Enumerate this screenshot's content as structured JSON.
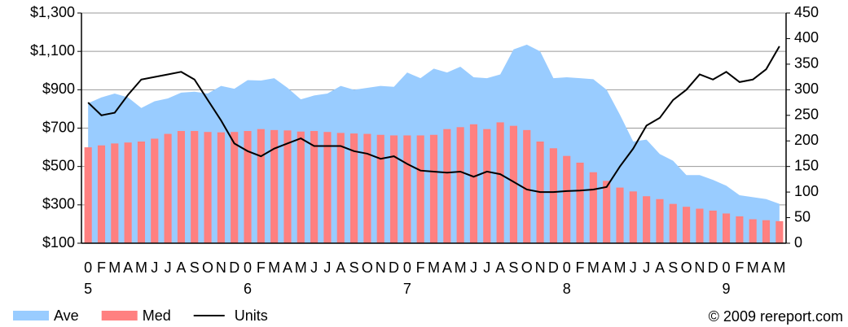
{
  "chart_data": {
    "type": "combo",
    "categories": [
      "0",
      "F",
      "M",
      "A",
      "M",
      "J",
      "J",
      "A",
      "S",
      "O",
      "N",
      "D",
      "0",
      "F",
      "M",
      "A",
      "M",
      "J",
      "J",
      "A",
      "S",
      "O",
      "N",
      "D",
      "0",
      "F",
      "M",
      "A",
      "M",
      "J",
      "J",
      "A",
      "S",
      "O",
      "N",
      "D",
      "0",
      "F",
      "M",
      "A",
      "M",
      "J",
      "J",
      "A",
      "S",
      "O",
      "N",
      "D",
      "0",
      "F",
      "M",
      "A",
      "M"
    ],
    "year_labels": [
      "5",
      "6",
      "7",
      "8",
      "9"
    ],
    "series": [
      {
        "name": "Ave",
        "kind": "area",
        "color": "#99ccff",
        "values": [
          830,
          860,
          880,
          860,
          805,
          840,
          855,
          885,
          890,
          880,
          920,
          905,
          950,
          948,
          960,
          910,
          850,
          870,
          880,
          920,
          900,
          910,
          920,
          915,
          990,
          960,
          1010,
          990,
          1020,
          965,
          960,
          980,
          1110,
          1135,
          1100,
          960,
          965,
          960,
          955,
          900,
          770,
          630,
          640,
          565,
          530,
          455,
          455,
          430,
          400,
          350,
          340,
          330,
          305
        ]
      },
      {
        "name": "Med",
        "kind": "bar",
        "color": "#ff8080",
        "values": [
          600,
          610,
          620,
          625,
          630,
          645,
          670,
          685,
          685,
          680,
          678,
          680,
          685,
          695,
          690,
          688,
          682,
          685,
          680,
          675,
          672,
          670,
          665,
          662,
          662,
          662,
          665,
          695,
          705,
          720,
          695,
          730,
          712,
          690,
          630,
          595,
          555,
          520,
          470,
          425,
          390,
          370,
          345,
          330,
          305,
          290,
          280,
          270,
          255,
          240,
          225,
          220,
          215
        ]
      },
      {
        "name": "Units",
        "kind": "line",
        "axis": "y2",
        "color": "#000000",
        "values": [
          275,
          250,
          255,
          290,
          320,
          325,
          330,
          335,
          320,
          280,
          240,
          195,
          180,
          170,
          185,
          195,
          205,
          190,
          190,
          190,
          180,
          175,
          165,
          170,
          155,
          142,
          140,
          138,
          140,
          130,
          140,
          135,
          120,
          105,
          100,
          100,
          102,
          103,
          105,
          110,
          150,
          185,
          230,
          245,
          280,
          300,
          330,
          320,
          335,
          315,
          320,
          340,
          385
        ]
      }
    ],
    "ylim": [
      100,
      1300
    ],
    "yticks": [
      {
        "value": 100,
        "label": "$100"
      },
      {
        "value": 300,
        "label": "$300"
      },
      {
        "value": 500,
        "label": "$500"
      },
      {
        "value": 700,
        "label": "$700"
      },
      {
        "value": 900,
        "label": "$900"
      },
      {
        "value": 1100,
        "label": "$1,100"
      },
      {
        "value": 1300,
        "label": "$1,300"
      }
    ],
    "y2lim": [
      0,
      450
    ],
    "y2ticks": [
      0,
      50,
      100,
      150,
      200,
      250,
      300,
      350,
      400,
      450
    ],
    "grid": true,
    "legend": "bottom-left",
    "credit": "© 2009 rereport.com"
  }
}
